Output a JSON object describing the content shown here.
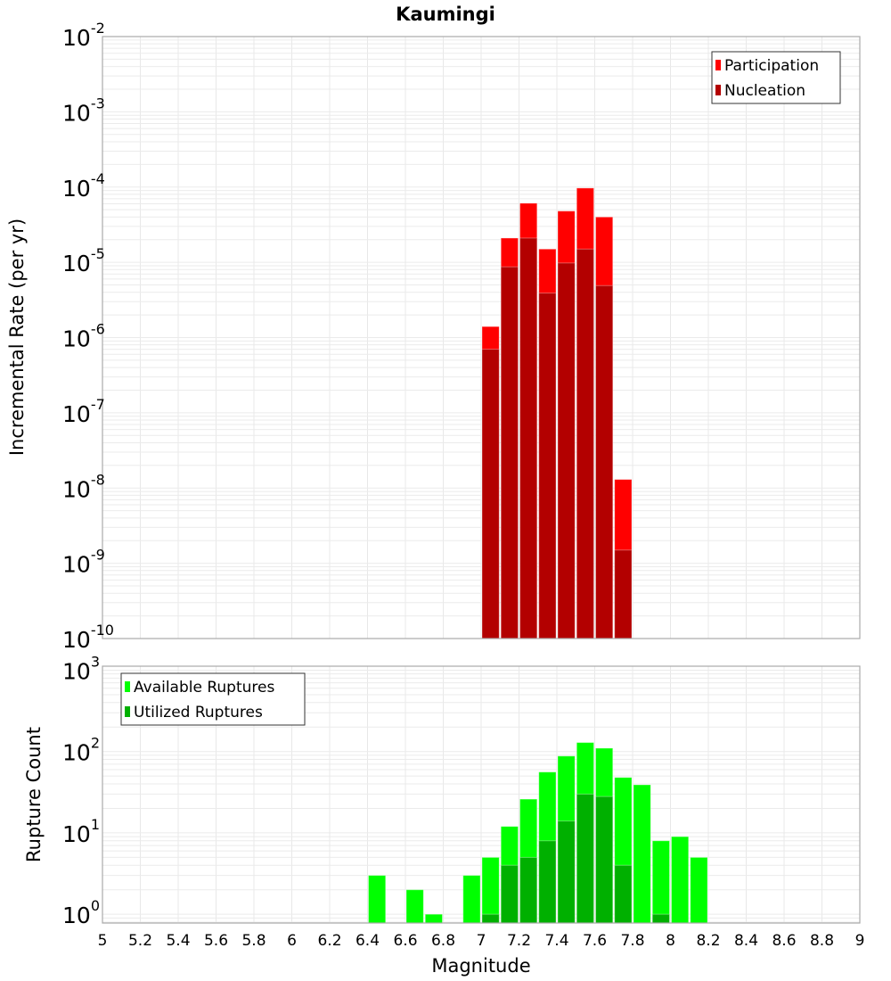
{
  "chart_data": [
    {
      "type": "bar",
      "title": "Kaumingi",
      "xlabel": "",
      "ylabel": "Incremental Rate (per yr)",
      "yscale": "log",
      "xlim": [
        5,
        9
      ],
      "ylim": [
        1e-10,
        0.01
      ],
      "y_tick_exponents": [
        -2,
        -3,
        -4,
        -5,
        -6,
        -7,
        -8,
        -9,
        -10
      ],
      "grid": true,
      "legend_position": "top-right",
      "bin_width": 0.1,
      "x": [
        7.05,
        7.15,
        7.25,
        7.35,
        7.45,
        7.55,
        7.65,
        7.75
      ],
      "series": [
        {
          "name": "Participation",
          "color": "#ff0000",
          "values": [
            1.4e-06,
            2.1e-05,
            6.1e-05,
            1.5e-05,
            4.8e-05,
            9.7e-05,
            4e-05,
            1.3e-08
          ]
        },
        {
          "name": "Nucleation",
          "color": "#b30000",
          "values": [
            7e-07,
            8.7e-06,
            2.1e-05,
            3.9e-06,
            9.8e-06,
            1.5e-05,
            4.9e-06,
            1.5e-09
          ]
        }
      ]
    },
    {
      "type": "bar",
      "title": "",
      "xlabel": "Magnitude",
      "ylabel": "Rupture Count",
      "yscale": "log",
      "xlim": [
        5,
        9
      ],
      "ylim": [
        0.78,
        1120
      ],
      "y_tick_exponents": [
        3,
        2,
        1,
        0
      ],
      "x_ticks": [
        "5",
        "5.2",
        "5.4",
        "5.6",
        "5.8",
        "6",
        "6.2",
        "6.4",
        "6.6",
        "6.8",
        "7",
        "7.2",
        "7.4",
        "7.6",
        "7.8",
        "8",
        "8.2",
        "8.4",
        "8.6",
        "8.8",
        "9"
      ],
      "grid": true,
      "legend_position": "top-left",
      "bin_width": 0.1,
      "x": [
        6.45,
        6.65,
        6.75,
        6.95,
        7.05,
        7.15,
        7.25,
        7.35,
        7.45,
        7.55,
        7.65,
        7.75,
        7.85,
        7.95,
        8.05,
        8.15
      ],
      "series": [
        {
          "name": "Available Ruptures",
          "color": "#00ff00",
          "values": [
            3,
            2,
            1,
            3,
            5,
            12,
            26,
            56,
            88,
            129,
            110,
            48,
            39,
            8,
            9,
            5
          ]
        },
        {
          "name": "Utilized Ruptures",
          "color": "#00b000",
          "values": [
            0,
            0,
            0,
            0,
            1,
            4,
            5,
            8,
            14,
            30,
            28,
            4,
            0,
            1,
            0,
            0
          ]
        }
      ]
    }
  ]
}
